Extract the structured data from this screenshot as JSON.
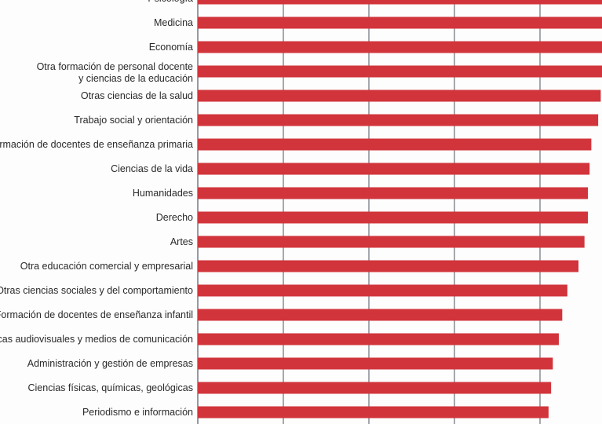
{
  "chart_data": {
    "type": "bar",
    "orientation": "horizontal",
    "title": "",
    "xlabel": "",
    "ylabel": "",
    "grid": true,
    "xlim": [
      0,
      5
    ],
    "bar_color": "#d1343b",
    "grid_color": "#6b6f7a",
    "categories": [
      "Psicología",
      "Medicina",
      "Economía",
      [
        "Otra formación de personal docente",
        "y ciencias de la educación"
      ],
      "Otras ciencias de la salud",
      "Trabajo social y orientación",
      "Formación de docentes de enseñanza primaria",
      "Ciencias de la vida",
      "Humanidades",
      "Derecho",
      "Artes",
      "Otra educación comercial y empresarial",
      "Otras ciencias sociales y del comportamiento",
      "Formación de docentes de enseñanza infantil",
      "Técnicas audiovisuales y medios de comunicación",
      "Administración y gestión de empresas",
      "Ciencias físicas, químicas, geológicas",
      "Periodismo e información"
    ],
    "values": [
      4.8,
      4.8,
      4.8,
      4.8,
      4.71,
      4.68,
      4.6,
      4.58,
      4.56,
      4.56,
      4.52,
      4.45,
      4.32,
      4.26,
      4.22,
      4.15,
      4.13,
      4.1
    ]
  }
}
